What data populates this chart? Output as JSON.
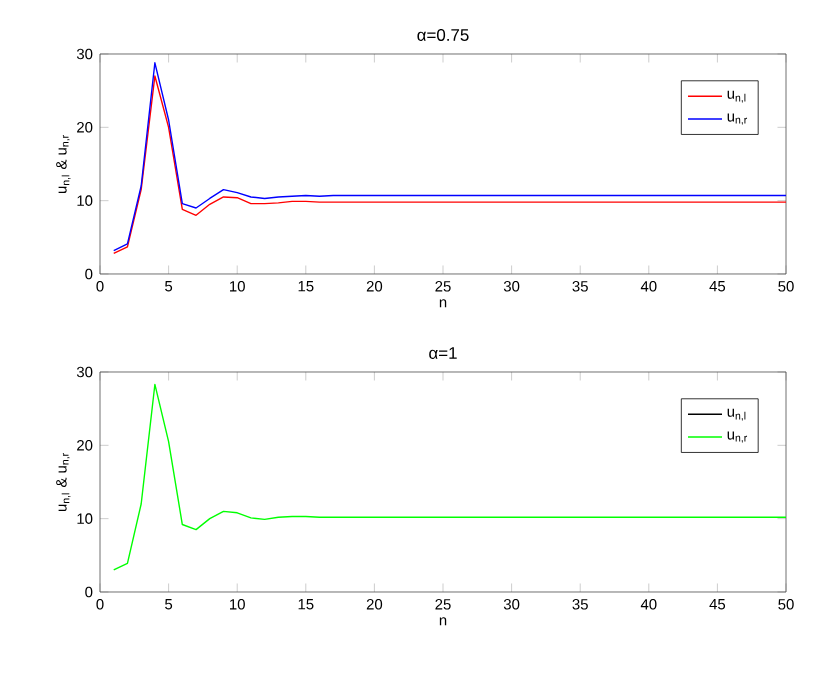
{
  "chart_data": [
    {
      "type": "line",
      "title": "α=0.75",
      "xlabel": "n",
      "ylabel": "u$_{n,l}$ & u$_{n,r}$",
      "x": [
        1,
        2,
        3,
        4,
        5,
        6,
        7,
        8,
        9,
        10,
        11,
        12,
        13,
        14,
        15,
        16,
        17,
        20,
        30,
        40,
        50
      ],
      "xlim": [
        0,
        50
      ],
      "ylim": [
        0,
        30
      ],
      "xticks": [
        0,
        5,
        10,
        15,
        20,
        25,
        30,
        35,
        40,
        45,
        50
      ],
      "yticks": [
        0,
        10,
        20,
        30
      ],
      "legend": "top right",
      "series": [
        {
          "name": "u$_{n,l}$",
          "color": "#ff0000",
          "values": [
            2.8,
            3.7,
            11.5,
            27,
            20,
            8.8,
            8,
            9.5,
            10.5,
            10.4,
            9.6,
            9.6,
            9.7,
            9.9,
            9.9,
            9.8,
            9.8,
            9.8,
            9.8,
            9.8,
            9.8
          ]
        },
        {
          "name": "u$_{n,r}$",
          "color": "#0000ff",
          "values": [
            3.2,
            4.1,
            12,
            28.8,
            21,
            9.6,
            9,
            10.3,
            11.5,
            11.1,
            10.5,
            10.3,
            10.5,
            10.6,
            10.7,
            10.6,
            10.7,
            10.7,
            10.7,
            10.7,
            10.7
          ]
        }
      ]
    },
    {
      "type": "line",
      "title": "α=1",
      "xlabel": "n",
      "ylabel": "u$_{n,l}$ & u$_{n,r}$",
      "x": [
        1,
        2,
        3,
        4,
        5,
        6,
        7,
        8,
        9,
        10,
        11,
        12,
        13,
        14,
        15,
        16,
        17,
        20,
        30,
        40,
        50
      ],
      "xlim": [
        0,
        50
      ],
      "ylim": [
        0,
        30
      ],
      "xticks": [
        0,
        5,
        10,
        15,
        20,
        25,
        30,
        35,
        40,
        45,
        50
      ],
      "yticks": [
        0,
        10,
        20,
        30
      ],
      "legend": "top right",
      "series": [
        {
          "name": "u$_{n,l}$",
          "color": "#000000",
          "values": [
            null,
            null,
            null,
            null,
            null,
            null,
            null,
            null,
            null,
            null,
            null,
            null,
            null,
            null,
            null,
            null,
            null,
            null,
            null,
            null,
            null
          ]
        },
        {
          "name": "u$_{n,r}$",
          "color": "#00ff00",
          "values": [
            3,
            3.9,
            12,
            28.3,
            20.5,
            9.2,
            8.5,
            10,
            11,
            10.8,
            10.1,
            9.9,
            10.2,
            10.3,
            10.3,
            10.2,
            10.2,
            10.2,
            10.2,
            10.2,
            10.2
          ]
        }
      ]
    }
  ]
}
